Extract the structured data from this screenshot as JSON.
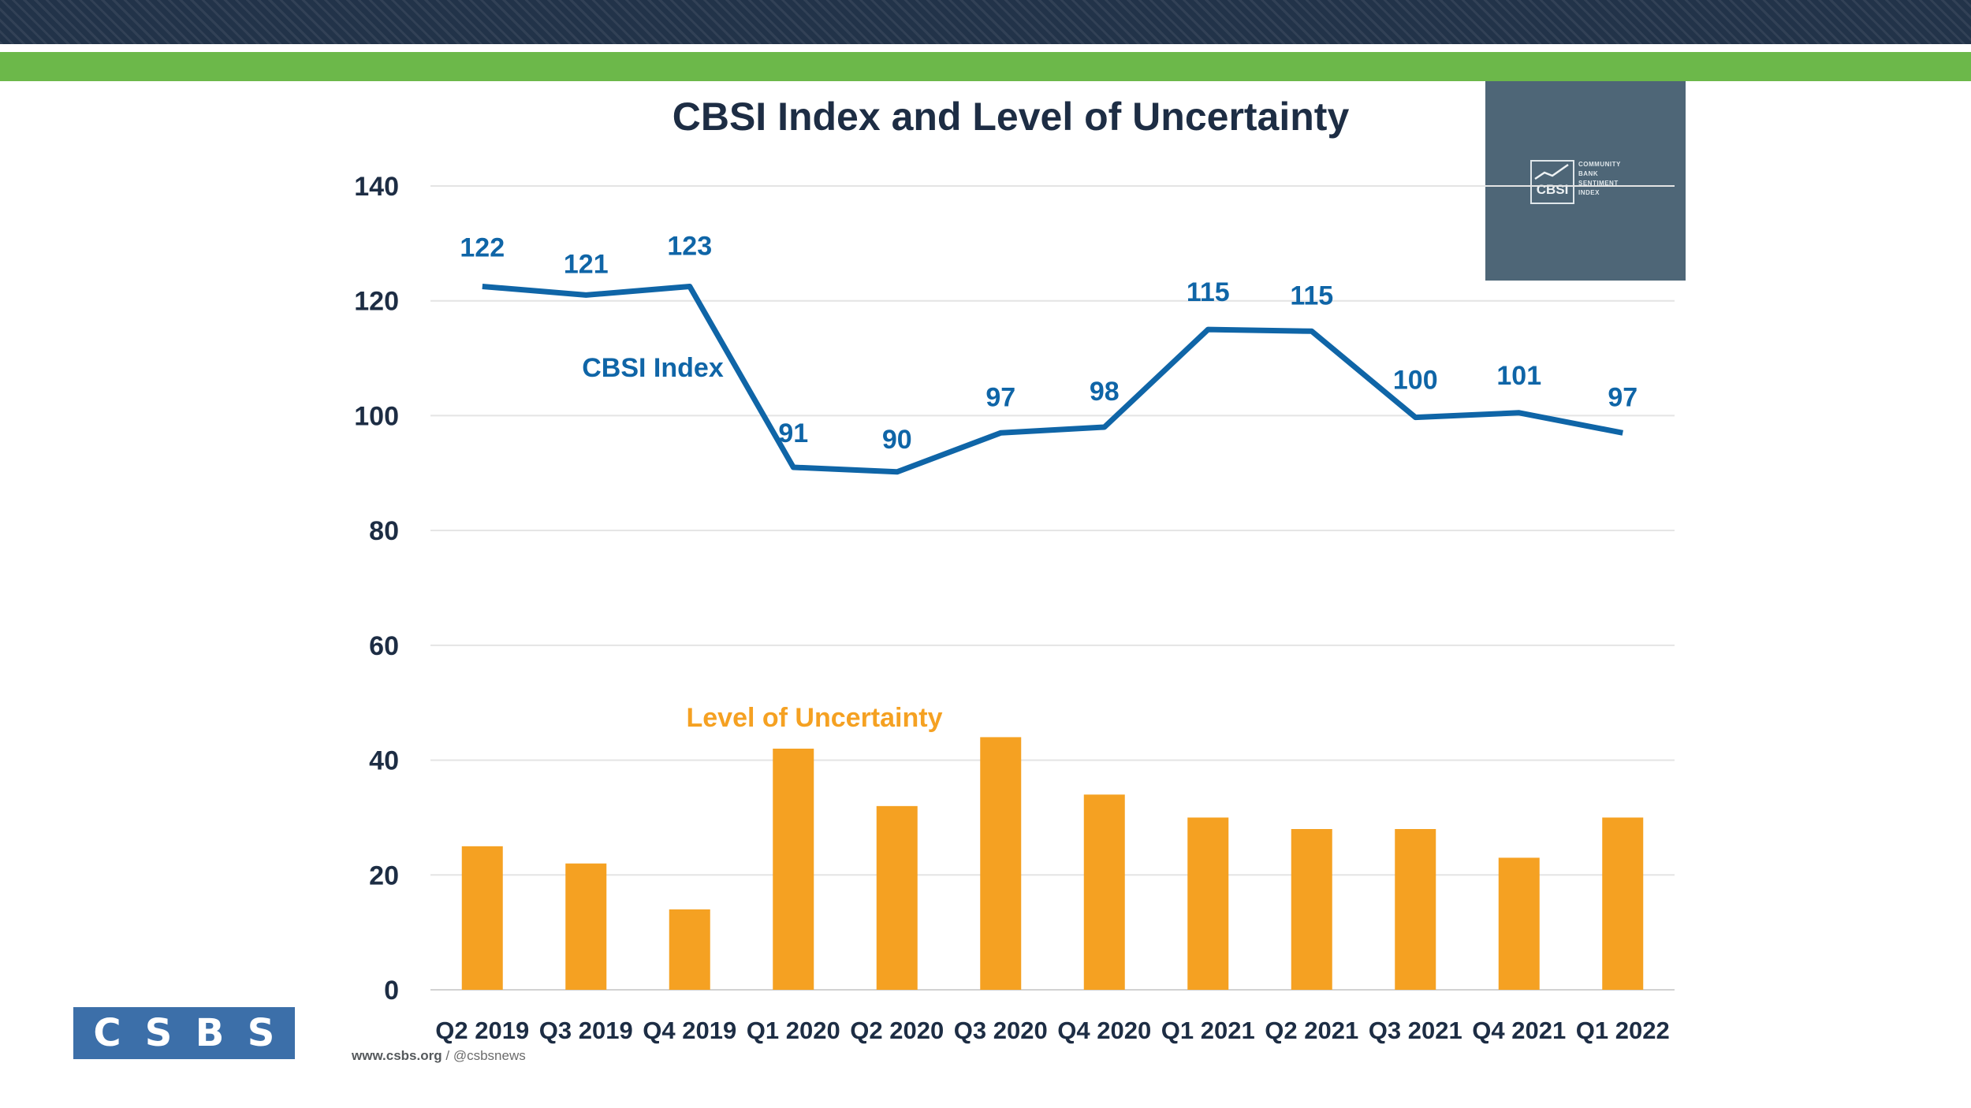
{
  "logo_panel": {
    "short_name": "CBSI",
    "long_name": [
      "Community",
      "Bank",
      "Sentiment",
      "Index"
    ]
  },
  "brand": {
    "letters": [
      "C",
      "S",
      "B",
      "S"
    ],
    "url": "www.csbs.org",
    "separator": "/",
    "handle": "@csbsnews"
  },
  "colors": {
    "line": "#0f65a7",
    "bar": "#f5a122",
    "axis_text": "#1d2d44",
    "title": "#1d2d44",
    "grid": "#e4e4e4",
    "green_band": "#6cb84a",
    "navy_band": "#223349"
  },
  "chart_data": {
    "type": "bar+line",
    "title": "CBSI Index and Level of Uncertainty",
    "categories": [
      "Q2 2019",
      "Q3 2019",
      "Q4 2019",
      "Q1 2020",
      "Q2 2020",
      "Q3 2020",
      "Q4 2020",
      "Q1 2021",
      "Q2 2021",
      "Q3 2021",
      "Q4 2021",
      "Q1 2022"
    ],
    "series": [
      {
        "name": "CBSI Index",
        "type": "line",
        "values": [
          122.5,
          121,
          122.5,
          91,
          90.2,
          97,
          98,
          115,
          114.7,
          99.7,
          100.5,
          97
        ],
        "labels": [
          "122",
          "121",
          "123",
          "91",
          "90",
          "97",
          "98",
          "115",
          "115",
          "100",
          "101",
          "97"
        ]
      },
      {
        "name": "Level of Uncertainty",
        "type": "bar",
        "values": [
          25,
          22,
          14,
          42,
          32,
          44,
          34,
          30,
          28,
          28,
          23,
          30
        ]
      }
    ],
    "yticks": [
      0,
      20,
      40,
      60,
      80,
      100,
      120,
      140
    ],
    "ylim": [
      0,
      140
    ],
    "grid": true,
    "legend": "inline labels"
  }
}
